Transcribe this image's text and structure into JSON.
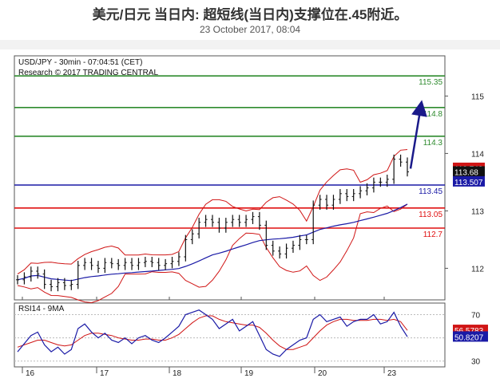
{
  "page": {
    "title": "美元/日元 当日内: 超短线(当日内)支撑位在.45附近。",
    "date": "23 October 2017, 08:04"
  },
  "chart_data": [
    {
      "type": "candlestick",
      "header": "USD/JPY - 30min - 07:04:51 (CET)",
      "subheader": "Research © 2017 TRADING CENTRAL",
      "ylim": [
        111.45,
        115.7
      ],
      "yticks": [
        "115",
        "114",
        "113",
        "112"
      ],
      "xticks": [
        "16",
        "17",
        "18",
        "19",
        "20",
        "23"
      ],
      "levels": [
        {
          "label": "115.35",
          "value": 115.35,
          "color": "#2e8b2e"
        },
        {
          "label": "114.8",
          "value": 114.8,
          "color": "#2e8b2e"
        },
        {
          "label": "114.3",
          "value": 114.3,
          "color": "#2e8b2e"
        },
        {
          "label": "113.45",
          "value": 113.45,
          "color": "#1a1aa6"
        },
        {
          "label": "113.05",
          "value": 113.05,
          "color": "#e01010"
        },
        {
          "label": "112.7",
          "value": 112.7,
          "color": "#e01010"
        }
      ],
      "markers": [
        {
          "label": "113.743",
          "value": 113.743,
          "color": "#d01515"
        },
        {
          "label": "113.68",
          "value": 113.68,
          "color": "#111111"
        },
        {
          "label": "113.507",
          "value": 113.507,
          "color": "#1a1aa6"
        }
      ],
      "series": [
        {
          "name": "USD/JPY",
          "values": [
            111.8,
            111.85,
            111.95,
            111.9,
            111.72,
            111.68,
            111.75,
            111.7,
            111.72,
            112.05,
            112.1,
            112.05,
            112.0,
            112.1,
            112.08,
            112.05,
            112.1,
            112.05,
            112.1,
            112.12,
            112.1,
            112.05,
            112.08,
            112.12,
            112.2,
            112.5,
            112.6,
            112.8,
            112.85,
            112.8,
            112.7,
            112.8,
            112.85,
            112.8,
            112.85,
            112.9,
            112.75,
            112.4,
            112.3,
            112.25,
            112.35,
            112.4,
            112.5,
            112.5,
            113.1,
            113.2,
            113.1,
            113.2,
            113.3,
            113.25,
            113.3,
            113.35,
            113.4,
            113.5,
            113.5,
            113.55,
            113.9,
            113.85,
            113.68
          ]
        }
      ],
      "overlays": [
        "Bollinger Bands (red)",
        "Moving Average (blue)"
      ],
      "target": {
        "value": 114.8
      }
    },
    {
      "type": "line",
      "header": "RSI14 - 9MA",
      "ylim": [
        25,
        80
      ],
      "yticks": [
        "70",
        "50",
        "30"
      ],
      "markers": [
        {
          "label": "56.5783",
          "value": 56.5783,
          "color": "#d01515"
        },
        {
          "label": "50.8207",
          "value": 50.8207,
          "color": "#1a1aa6"
        }
      ],
      "series": [
        {
          "name": "RSI14",
          "values": [
            38,
            45,
            52,
            55,
            44,
            38,
            42,
            36,
            40,
            58,
            62,
            55,
            50,
            54,
            48,
            46,
            50,
            45,
            50,
            52,
            48,
            46,
            50,
            55,
            60,
            70,
            72,
            74,
            70,
            66,
            58,
            62,
            66,
            56,
            60,
            64,
            52,
            40,
            36,
            34,
            40,
            44,
            48,
            50,
            66,
            70,
            64,
            66,
            68,
            60,
            64,
            66,
            66,
            70,
            62,
            64,
            72,
            60,
            51
          ]
        },
        {
          "name": "9MA",
          "values": [
            42,
            44,
            46,
            48,
            48,
            46,
            44,
            43,
            44,
            48,
            52,
            54,
            54,
            53,
            52,
            50,
            49,
            48,
            48,
            49,
            49,
            48,
            48,
            50,
            53,
            58,
            63,
            67,
            69,
            69,
            66,
            64,
            63,
            62,
            61,
            61,
            59,
            54,
            48,
            43,
            40,
            40,
            42,
            44,
            50,
            56,
            61,
            64,
            66,
            66,
            65,
            65,
            65,
            66,
            66,
            65,
            66,
            64,
            56.5
          ]
        }
      ]
    }
  ]
}
